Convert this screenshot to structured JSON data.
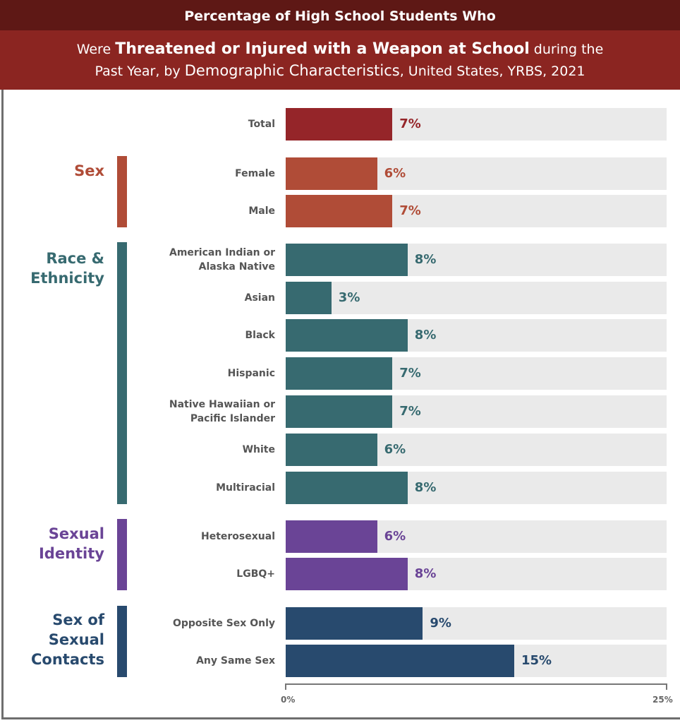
{
  "header": {
    "line1": "Percentage of High School Students Who",
    "line2_pre": "Were ",
    "line2_bold": "Threatened or Injured with a Weapon at School",
    "line2_post": " during the",
    "line3_pre": "Past Year, by ",
    "line3_mid": "Demographic Characteristics",
    "line3_post": ", United States, YRBS, 2021"
  },
  "chart_data": {
    "type": "bar",
    "orientation": "horizontal",
    "xlim": [
      0,
      25
    ],
    "tick_labels": [
      "0%",
      "25%"
    ],
    "groups": [
      {
        "name": "",
        "color": "#952529",
        "items": [
          {
            "label": "Total",
            "value": 7
          }
        ]
      },
      {
        "name": "Sex",
        "color": "#b04c37",
        "items": [
          {
            "label": "Female",
            "value": 6
          },
          {
            "label": "Male",
            "value": 7
          }
        ]
      },
      {
        "name": "Race &\nEthnicity",
        "color": "#376a70",
        "items": [
          {
            "label": "American Indian or\nAlaska Native",
            "value": 8
          },
          {
            "label": "Asian",
            "value": 3
          },
          {
            "label": "Black",
            "value": 8
          },
          {
            "label": "Hispanic",
            "value": 7
          },
          {
            "label": "Native Hawaiian or\nPacific Islander",
            "value": 7
          },
          {
            "label": "White",
            "value": 6
          },
          {
            "label": "Multiracial",
            "value": 8
          }
        ]
      },
      {
        "name": "Sexual\nIdentity",
        "color": "#6a4496",
        "items": [
          {
            "label": "Heterosexual",
            "value": 6
          },
          {
            "label": "LGBQ+",
            "value": 8
          }
        ]
      },
      {
        "name": "Sex of\nSexual\nContacts",
        "color": "#284a6e",
        "items": [
          {
            "label": "Opposite Sex Only",
            "value": 9
          },
          {
            "label": "Any Same Sex",
            "value": 15
          }
        ]
      }
    ]
  }
}
